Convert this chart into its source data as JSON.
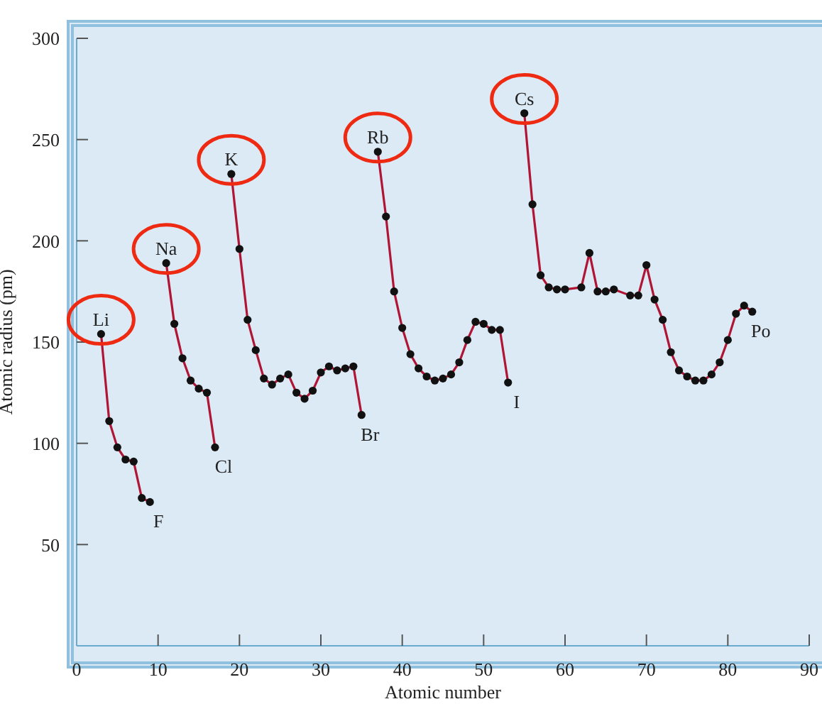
{
  "chart_data": {
    "type": "line",
    "xlabel": "Atomic number",
    "ylabel": "Atomic radius (pm)",
    "xlim": [
      0,
      90
    ],
    "xticks": [
      0,
      10,
      20,
      30,
      40,
      50,
      60,
      70,
      80,
      90
    ],
    "ylim": [
      0,
      300
    ],
    "yticks": [
      50,
      100,
      150,
      200,
      250,
      300
    ],
    "marker": "circle",
    "grid": false,
    "legend": false,
    "series": [
      {
        "color": "#b01535",
        "x": [
          3,
          4,
          5,
          6,
          7,
          8,
          9,
          10,
          11,
          12,
          13,
          14,
          15,
          16,
          17,
          18,
          19,
          20,
          21,
          22,
          23,
          24,
          25,
          26,
          27,
          28,
          29,
          30,
          31,
          32,
          33,
          34,
          35,
          36,
          37,
          38,
          39,
          40,
          41,
          42,
          43,
          44,
          45,
          46,
          47,
          48,
          49,
          50,
          51,
          52,
          53,
          54,
          55,
          56,
          57,
          58,
          59,
          60,
          62,
          63,
          64,
          65,
          66,
          68,
          69,
          70,
          71,
          72,
          73,
          74,
          75,
          76,
          77,
          78,
          79,
          80,
          81,
          82,
          83
        ],
        "values": [
          154,
          111,
          98,
          92,
          91,
          73,
          71,
          null,
          189,
          159,
          142,
          131,
          127,
          125,
          98,
          null,
          233,
          196,
          161,
          146,
          132,
          129,
          132,
          134,
          125,
          122,
          126,
          135,
          138,
          136,
          137,
          138,
          114,
          null,
          244,
          212,
          175,
          157,
          144,
          137,
          133,
          131,
          132,
          134,
          140,
          151,
          160,
          159,
          156,
          156,
          130,
          null,
          263,
          218,
          183,
          177,
          176,
          176,
          177,
          194,
          175,
          175,
          176,
          173,
          173,
          188,
          171,
          161,
          145,
          136,
          133,
          131,
          131,
          134,
          140,
          151,
          164,
          168,
          165
        ]
      }
    ],
    "annotations": [
      {
        "text": "Li",
        "x": 3,
        "y": 154
      },
      {
        "text": "Na",
        "x": 11,
        "y": 189
      },
      {
        "text": "K",
        "x": 19,
        "y": 233
      },
      {
        "text": "Rb",
        "x": 37,
        "y": 244
      },
      {
        "text": "Cs",
        "x": 55,
        "y": 263
      },
      {
        "text": "F",
        "x": 9,
        "y": 71
      },
      {
        "text": "Cl",
        "x": 17,
        "y": 98
      },
      {
        "text": "Br",
        "x": 35,
        "y": 114
      },
      {
        "text": "I",
        "x": 53,
        "y": 130
      },
      {
        "text": "Po",
        "x": 83,
        "y": 165
      }
    ]
  }
}
